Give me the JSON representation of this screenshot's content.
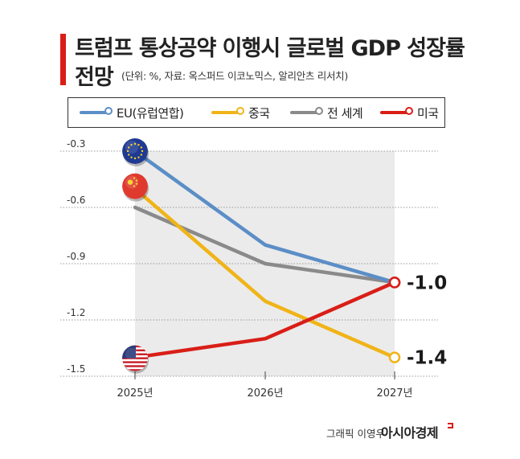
{
  "header": {
    "title_line1": "트럼프 통상공약 이행시 글로벌 GDP 성장률",
    "title_line2": "전망",
    "note": "(단위: %, 자료: 옥스퍼드 이코노믹스, 알리안츠 리서치)"
  },
  "legend": [
    {
      "label": "EU(유럽연합)",
      "color": "#5b8ec7"
    },
    {
      "label": "중국",
      "color": "#f0b418"
    },
    {
      "label": "전 세계",
      "color": "#8a8a8a"
    },
    {
      "label": "미국",
      "color": "#d91e18"
    }
  ],
  "chart_data": {
    "type": "line",
    "x": [
      "2025년",
      "2026년",
      "2027년"
    ],
    "ylim": [
      -1.5,
      -0.3
    ],
    "yticks": [
      "-0.3",
      "-0.6",
      "-0.9",
      "-1.2",
      "-1.5"
    ],
    "grid": true,
    "series": [
      {
        "name": "EU(유럽연합)",
        "color": "#5b8ec7",
        "values": [
          -0.3,
          -0.8,
          -1.0
        ],
        "icon": "eu-flag-icon"
      },
      {
        "name": "중국",
        "color": "#f0b418",
        "values": [
          -0.5,
          -1.1,
          -1.4
        ],
        "icon": "china-flag-icon"
      },
      {
        "name": "전 세계",
        "color": "#8a8a8a",
        "values": [
          -0.6,
          -0.9,
          -1.0
        ]
      },
      {
        "name": "미국",
        "color": "#d91e18",
        "values": [
          -1.4,
          -1.3,
          -1.0
        ],
        "icon": "us-flag-icon"
      }
    ],
    "end_labels": [
      "-1.0",
      "-1.4"
    ]
  },
  "footer": {
    "credit": "그래픽 이영우",
    "brand": "아시아경제"
  }
}
